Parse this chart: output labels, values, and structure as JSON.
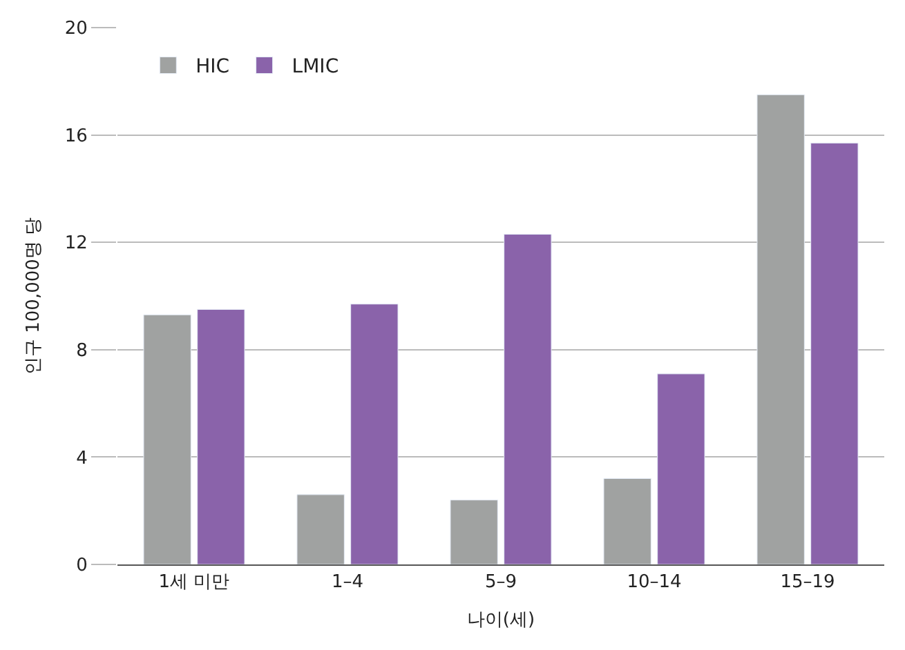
{
  "chart_data": {
    "type": "bar",
    "xlabel": "나이(세)",
    "ylabel": "인구 100,000명 당",
    "categories": [
      "1세 미만",
      "1–4",
      "5–9",
      "10–14",
      "15–19"
    ],
    "series": [
      {
        "name": "HIC",
        "color": "#a0a2a1",
        "values": [
          9.3,
          2.6,
          2.4,
          3.2,
          17.5
        ]
      },
      {
        "name": "LMIC",
        "color": "#8a63aa",
        "values": [
          9.5,
          9.7,
          12.3,
          7.1,
          15.7
        ]
      }
    ],
    "ylim": [
      0,
      20
    ],
    "yticks": [
      0,
      4,
      8,
      12,
      16,
      20
    ],
    "grid": "y",
    "legend": "top left"
  }
}
